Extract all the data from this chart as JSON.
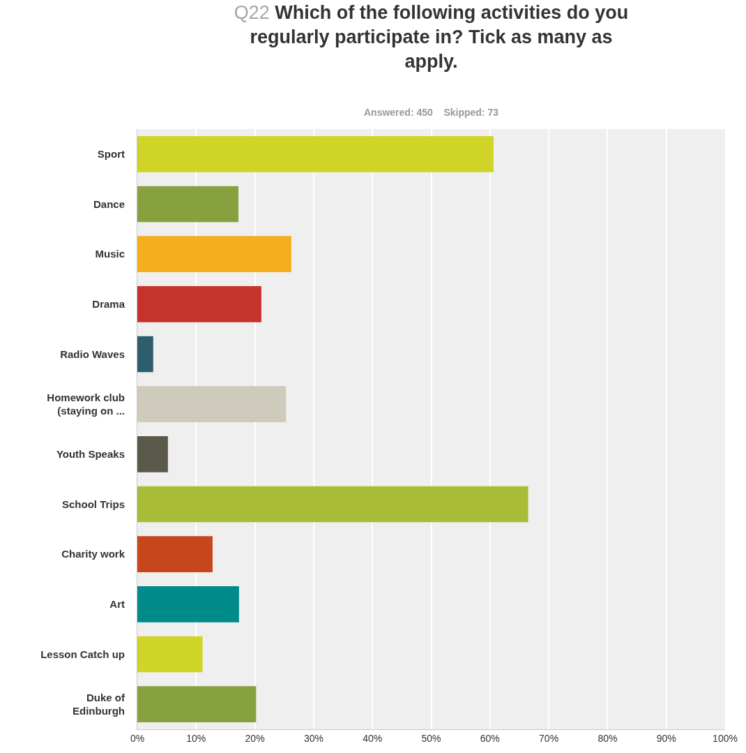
{
  "chart_data": {
    "type": "bar",
    "orientation": "horizontal",
    "title": "Q22 Which of the following activities do you regularly participate in? Tick as many as apply.",
    "subtitle": "Answered: 450    Skipped: 73",
    "categories": [
      "Sport",
      "Dance",
      "Music",
      "Drama",
      "Radio Waves",
      "Homework club\n(staying on ...",
      "Youth Speaks",
      "School Trips",
      "Charity work",
      "Art",
      "Lesson Catch up",
      "Duke of\nEdinburgh"
    ],
    "values": [
      60.6,
      17.2,
      26.2,
      21.1,
      2.7,
      25.3,
      5.2,
      66.5,
      12.8,
      17.3,
      11.1,
      20.2
    ],
    "colors": [
      "#cfd427",
      "#86a13d",
      "#f5ae1e",
      "#c5332b",
      "#2e5e6e",
      "#cecbbd",
      "#5b5a4a",
      "#a8bc38",
      "#c8461c",
      "#008a8a",
      "#cfd427",
      "#86a13d"
    ],
    "xlim": [
      0,
      100
    ],
    "xticks": [
      {
        "value": 0,
        "label": "0%"
      },
      {
        "value": 10,
        "label": "10%"
      },
      {
        "value": 20,
        "label": "20%"
      },
      {
        "value": 30,
        "label": "30%"
      },
      {
        "value": 40,
        "label": "40%"
      },
      {
        "value": 50,
        "label": "50%"
      },
      {
        "value": 60,
        "label": "60%"
      },
      {
        "value": 70,
        "label": "70%"
      },
      {
        "value": 80,
        "label": "80%"
      },
      {
        "value": 90,
        "label": "90%"
      },
      {
        "value": 100,
        "label": "100%"
      }
    ],
    "grid": "x"
  }
}
